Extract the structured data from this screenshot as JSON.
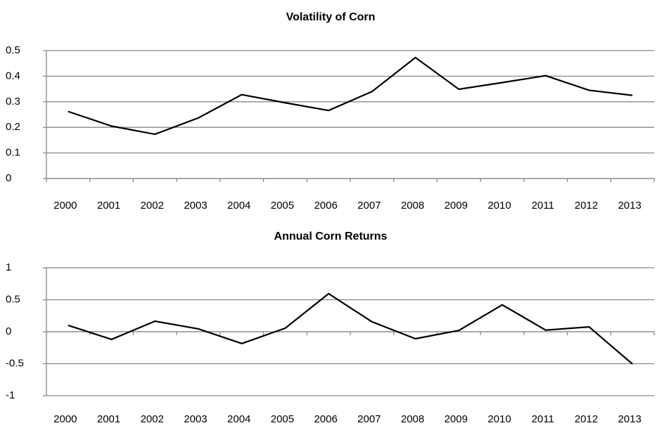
{
  "chart_data": [
    {
      "type": "line",
      "title": "Volatility of Corn",
      "categories": [
        "2000",
        "2001",
        "2002",
        "2003",
        "2004",
        "2005",
        "2006",
        "2007",
        "2008",
        "2009",
        "2010",
        "2011",
        "2012",
        "2013"
      ],
      "values": [
        0.262,
        0.205,
        0.173,
        0.237,
        0.328,
        0.296,
        0.266,
        0.34,
        0.473,
        0.349,
        0.375,
        0.402,
        0.345,
        0.325
      ],
      "color": "#000000",
      "ylim": [
        0,
        0.5
      ],
      "yticks": [
        0,
        0.1,
        0.2,
        0.3,
        0.4,
        0.5
      ],
      "grid": true
    },
    {
      "type": "line",
      "title": "Annual Corn Returns",
      "categories": [
        "2000",
        "2001",
        "2002",
        "2003",
        "2004",
        "2005",
        "2006",
        "2007",
        "2008",
        "2009",
        "2010",
        "2011",
        "2012",
        "2013"
      ],
      "values": [
        0.1,
        -0.12,
        0.165,
        0.045,
        -0.185,
        0.055,
        0.595,
        0.155,
        -0.11,
        0.02,
        0.42,
        0.025,
        0.075,
        -0.505
      ],
      "color": "#000000",
      "ylim": [
        -1,
        1
      ],
      "yticks": [
        -1,
        -0.5,
        0,
        0.5,
        1
      ],
      "grid": true
    }
  ]
}
